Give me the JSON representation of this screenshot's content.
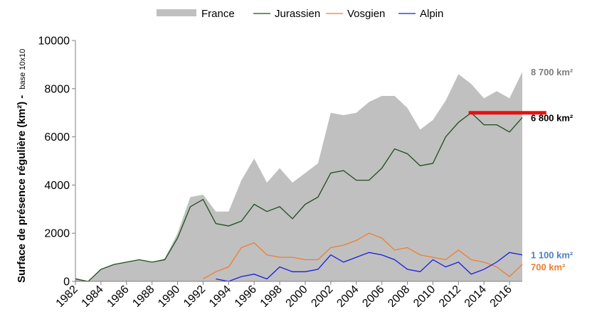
{
  "chart_data": {
    "type": "area",
    "title": "",
    "ylabel": "Surface de présence régulière (km²) -",
    "ylabel_note": "base 10x10",
    "ylim": [
      0,
      10000
    ],
    "xlim": [
      1982,
      2017
    ],
    "grid": false,
    "legend_position": "top",
    "y_ticks": [
      "0",
      "2000",
      "4000",
      "6000",
      "8000",
      "10000"
    ],
    "x_ticks": [
      "1982",
      "1984",
      "1986",
      "1988",
      "1990",
      "1992",
      "1994",
      "1996",
      "1998",
      "2000",
      "2002",
      "2004",
      "2006",
      "2008",
      "2010",
      "2012",
      "2014",
      "2016"
    ],
    "series": [
      {
        "name": "France",
        "kind": "area",
        "color": "#c0c0c0",
        "x": [
          1982,
          1983,
          1984,
          1985,
          1986,
          1987,
          1988,
          1989,
          1990,
          1991,
          1992,
          1993,
          1994,
          1995,
          1996,
          1997,
          1998,
          1999,
          2000,
          2001,
          2002,
          2003,
          2004,
          2005,
          2006,
          2007,
          2008,
          2009,
          2010,
          2011,
          2012,
          2013,
          2014,
          2015,
          2016,
          2017
        ],
        "values": [
          150,
          0,
          500,
          700,
          800,
          900,
          800,
          950,
          2000,
          3500,
          3600,
          2900,
          2900,
          4200,
          5100,
          4100,
          4700,
          4100,
          4500,
          4900,
          7000,
          6900,
          7000,
          7450,
          7700,
          7700,
          7200,
          6300,
          6700,
          7500,
          8600,
          8200,
          7600,
          7900,
          7600,
          8700
        ]
      },
      {
        "name": "Jurassien",
        "kind": "line",
        "color": "#1e4d1e",
        "x": [
          1982,
          1983,
          1984,
          1985,
          1986,
          1987,
          1988,
          1989,
          1990,
          1991,
          1992,
          1993,
          1994,
          1995,
          1996,
          1997,
          1998,
          1999,
          2000,
          2001,
          2002,
          2003,
          2004,
          2005,
          2006,
          2007,
          2008,
          2009,
          2010,
          2011,
          2012,
          2013,
          2014,
          2015,
          2016,
          2017
        ],
        "values": [
          100,
          0,
          500,
          700,
          800,
          900,
          800,
          900,
          1800,
          3100,
          3400,
          2400,
          2300,
          2500,
          3200,
          2900,
          3100,
          2600,
          3200,
          3500,
          4500,
          4600,
          4200,
          4200,
          4700,
          5500,
          5300,
          4800,
          4900,
          6000,
          6600,
          7000,
          6500,
          6500,
          6200,
          6800
        ]
      },
      {
        "name": "Vosgien",
        "kind": "line",
        "color": "#ee7d31",
        "x": [
          1992,
          1993,
          1994,
          1995,
          1996,
          1997,
          1998,
          1999,
          2000,
          2001,
          2002,
          2003,
          2004,
          2005,
          2006,
          2007,
          2008,
          2009,
          2010,
          2011,
          2012,
          2013,
          2014,
          2015,
          2016,
          2017
        ],
        "values": [
          100,
          400,
          600,
          1400,
          1600,
          1100,
          1000,
          1000,
          900,
          900,
          1400,
          1500,
          1700,
          2000,
          1800,
          1300,
          1400,
          1100,
          1000,
          900,
          1300,
          900,
          800,
          600,
          200,
          700
        ]
      },
      {
        "name": "Alpin",
        "kind": "line",
        "color": "#1a1ae6",
        "x": [
          1993,
          1994,
          1995,
          1996,
          1997,
          1998,
          1999,
          2000,
          2001,
          2002,
          2003,
          2004,
          2005,
          2006,
          2007,
          2008,
          2009,
          2010,
          2011,
          2012,
          2013,
          2014,
          2015,
          2016,
          2017
        ],
        "values": [
          100,
          0,
          200,
          300,
          100,
          600,
          400,
          400,
          500,
          1100,
          800,
          1000,
          1200,
          1100,
          900,
          500,
          400,
          900,
          600,
          800,
          300,
          500,
          800,
          1200,
          1100
        ]
      }
    ],
    "reference_line": {
      "color": "#e8100f",
      "x_from": 2012.8,
      "x_to": 2017.1,
      "value": 7000
    },
    "annotations": [
      {
        "text": "8 700 km²",
        "color": "#7f7f7f",
        "value": 8700
      },
      {
        "text": "6 800 km²",
        "color": "#000000",
        "value": 6800
      },
      {
        "text": "1 100 km²",
        "color": "#4f81bd",
        "value": 1100
      },
      {
        "text": "700 km²",
        "color": "#ee7d31",
        "value": 600
      }
    ]
  }
}
